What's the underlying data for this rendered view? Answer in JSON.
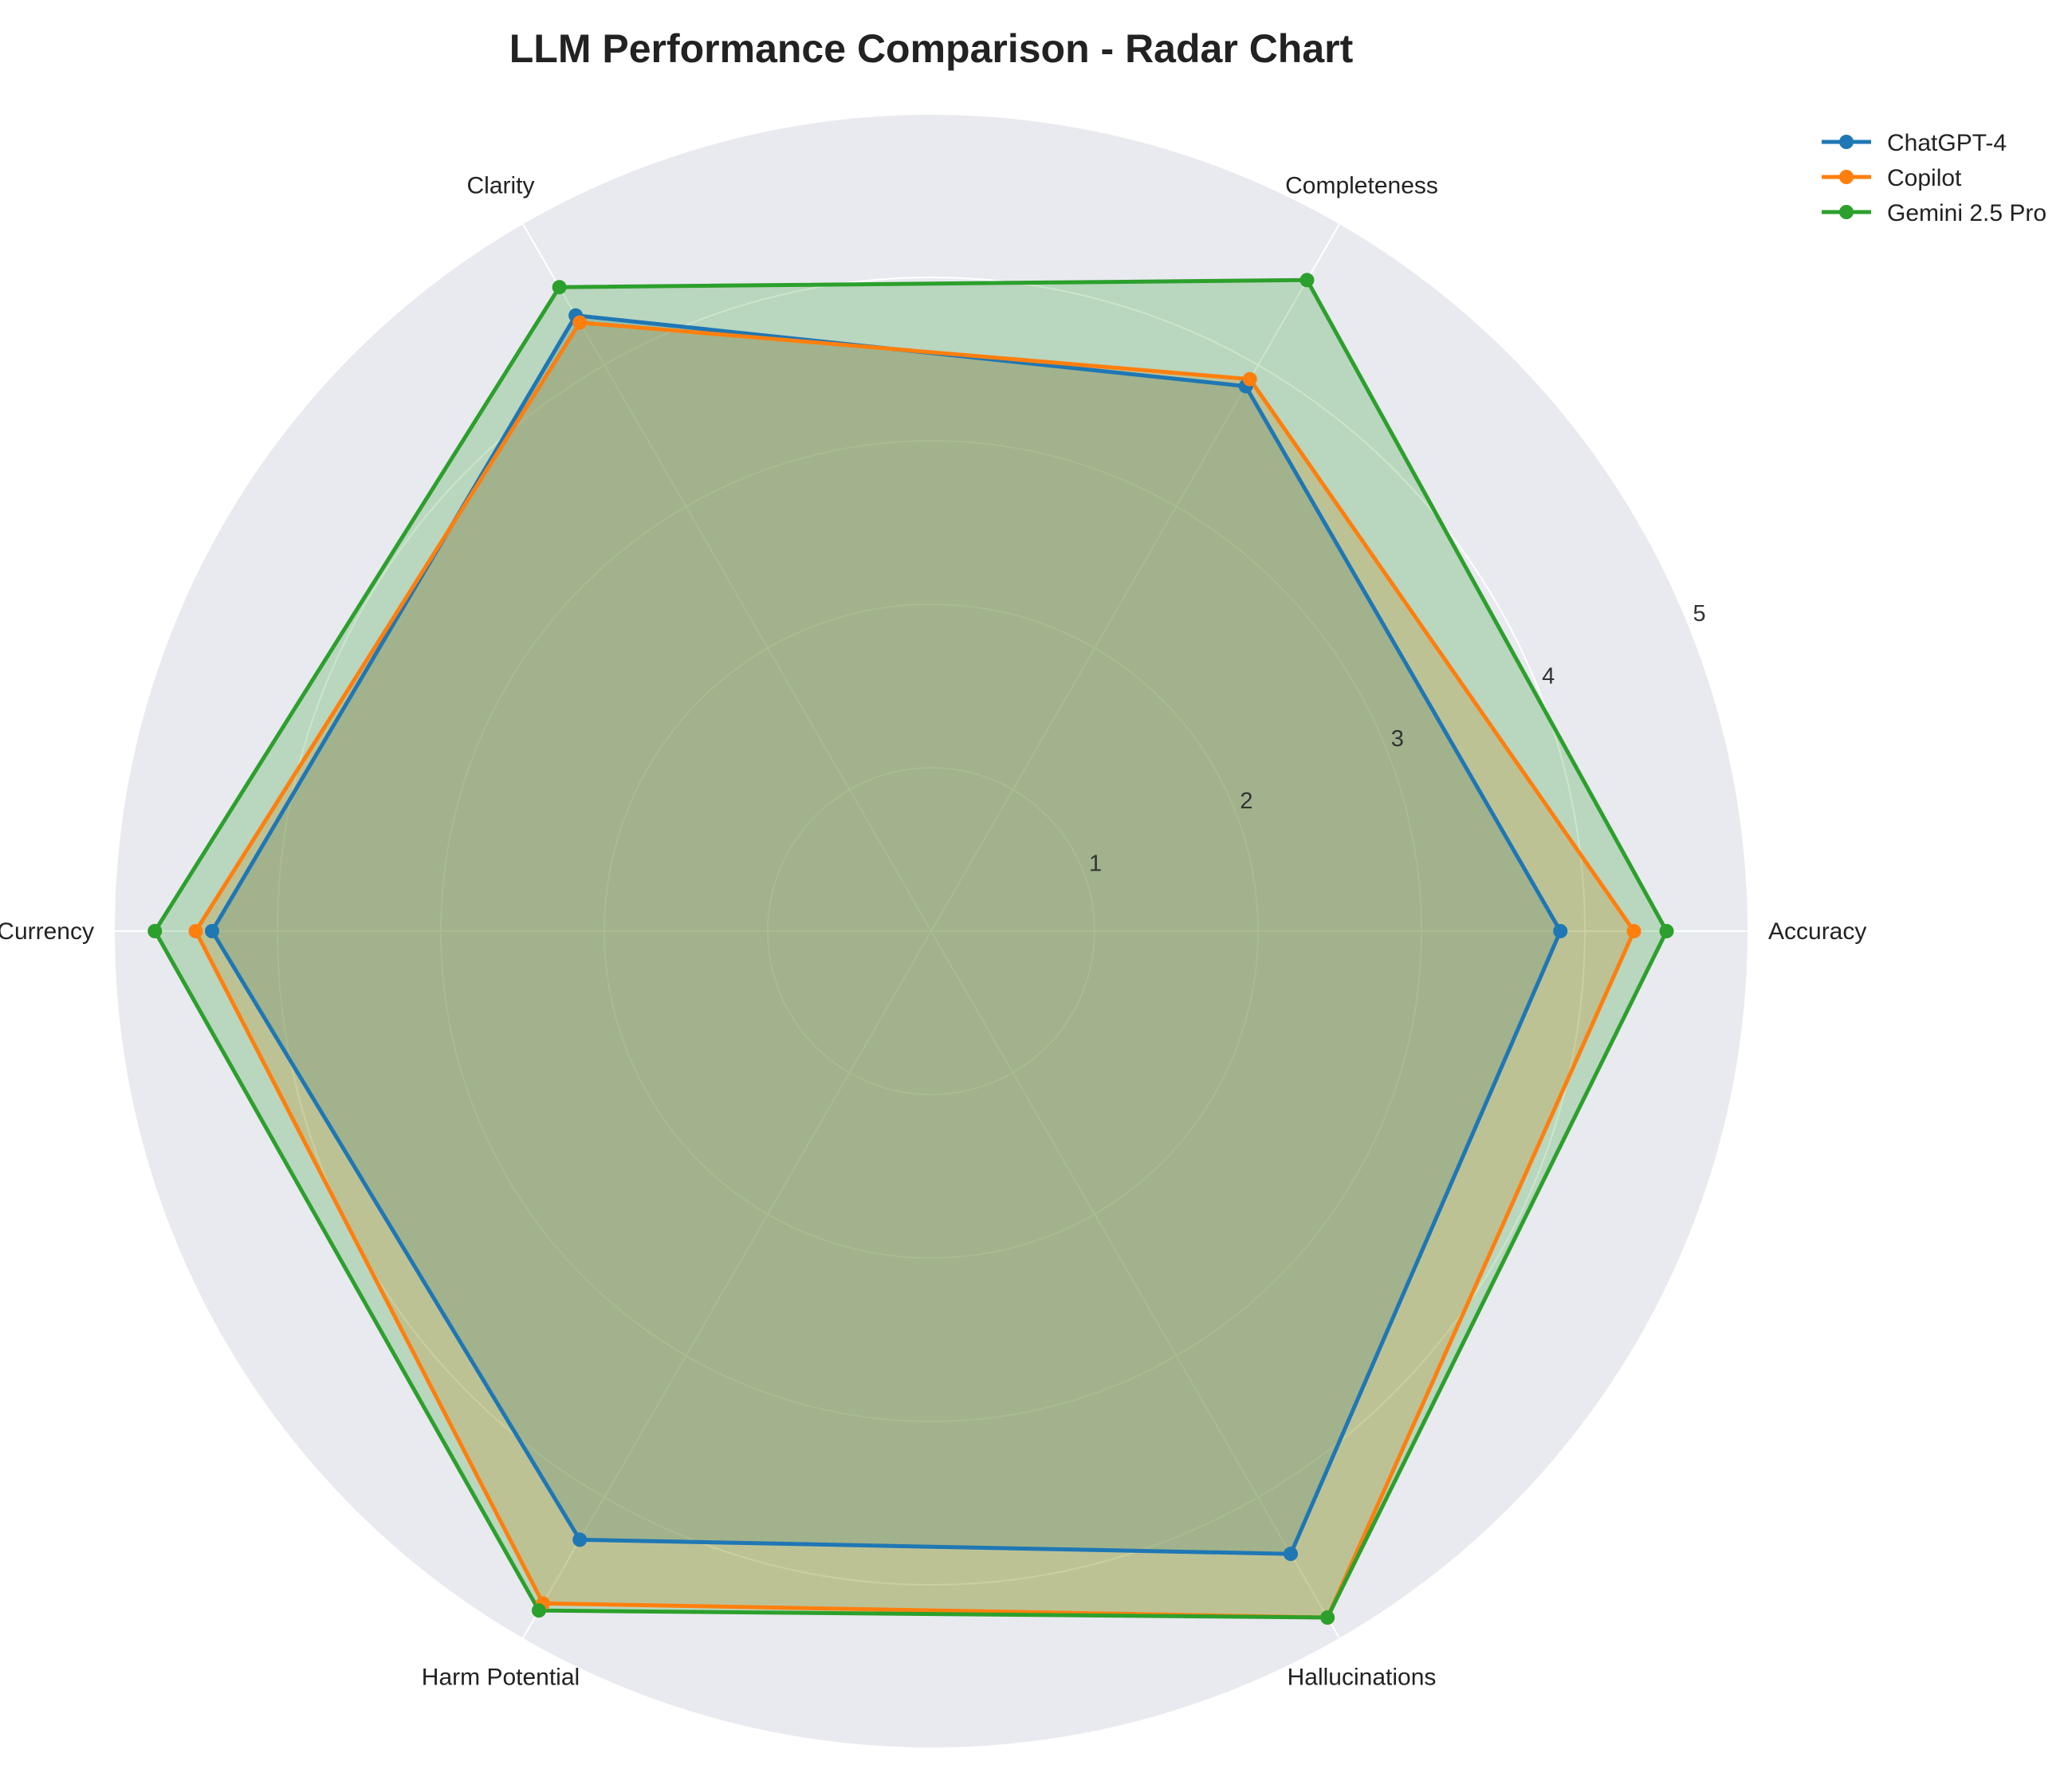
{
  "chart_data": {
    "type": "radar",
    "title": "LLM Performance Comparison - Radar Chart",
    "axes": [
      "Accuracy",
      "Completeness",
      "Clarity",
      "Currency",
      "Harm Potential",
      "Hallucinations"
    ],
    "r_ticks": [
      "1",
      "2",
      "3",
      "4",
      "5"
    ],
    "rlim": [
      0,
      5
    ],
    "grid": true,
    "legend_position": "top-right",
    "series": [
      {
        "name": "ChatGPT-4",
        "color": "#1f77b4",
        "values": [
          3.85,
          3.85,
          4.35,
          4.4,
          4.3,
          4.4
        ]
      },
      {
        "name": "Copilot",
        "color": "#ff7f0e",
        "values": [
          4.3,
          3.9,
          4.3,
          4.5,
          4.75,
          4.85
        ]
      },
      {
        "name": "Gemini 2.5 Pro",
        "color": "#2ca02c",
        "values": [
          4.5,
          4.6,
          4.55,
          4.75,
          4.8,
          4.85
        ]
      }
    ]
  }
}
